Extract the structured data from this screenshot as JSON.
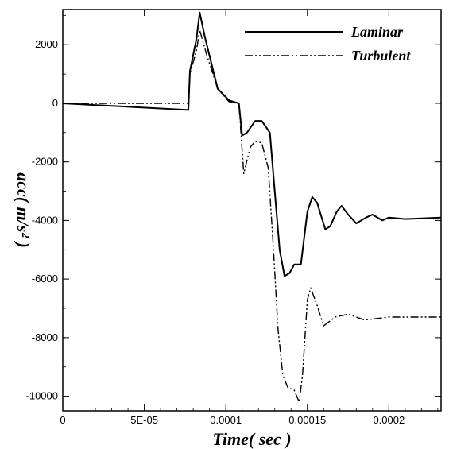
{
  "chart_data": {
    "type": "line",
    "xlabel": "Time( sec )",
    "ylabel": "acc( m/s² )",
    "xlim": [
      0,
      0.0002
    ],
    "ylim": [
      -10500,
      3200
    ],
    "x_ticks": [
      0,
      5e-05,
      0.0001,
      0.00015,
      0.0002
    ],
    "x_tick_labels": [
      "0",
      "5E-05",
      "0.0001",
      "0.00015",
      "0.0002"
    ],
    "y_ticks": [
      -10000,
      -8000,
      -6000,
      -4000,
      -2000,
      0,
      2000
    ],
    "y_tick_labels": [
      "-10000",
      "-8000",
      "-6000",
      "-4000",
      "-2000",
      "0",
      "2000"
    ],
    "grid": false,
    "legend_position": "top-right",
    "series": [
      {
        "name": "Laminar",
        "style": "solid",
        "color": "#000000",
        "points": [
          [
            0,
            0
          ],
          [
            7.7e-05,
            -230
          ],
          [
            7.8e-05,
            1100
          ],
          [
            8.2e-05,
            2200
          ],
          [
            8.4e-05,
            3100
          ],
          [
            8.7e-05,
            2300
          ],
          [
            9.5e-05,
            500
          ],
          [
            0.000102,
            100
          ],
          [
            0.000108,
            0
          ],
          [
            0.00011,
            -1100
          ],
          [
            0.000113,
            -1000
          ],
          [
            0.000118,
            -600
          ],
          [
            0.000122,
            -600
          ],
          [
            0.000127,
            -1000
          ],
          [
            0.00013,
            -3000
          ],
          [
            0.000133,
            -5000
          ],
          [
            0.000136,
            -5900
          ],
          [
            0.000139,
            -5800
          ],
          [
            0.000142,
            -5500
          ],
          [
            0.000146,
            -5500
          ],
          [
            0.00015,
            -3700
          ],
          [
            0.000153,
            -3200
          ],
          [
            0.000156,
            -3400
          ],
          [
            0.000161,
            -4300
          ],
          [
            0.000164,
            -4200
          ],
          [
            0.000168,
            -3700
          ],
          [
            0.000171,
            -3500
          ],
          [
            0.000175,
            -3800
          ],
          [
            0.00018,
            -4100
          ],
          [
            0.000186,
            -3900
          ],
          [
            0.00019,
            -3800
          ],
          [
            0.000196,
            -4000
          ],
          [
            0.0002,
            -3900
          ],
          [
            0.00021,
            -3950
          ],
          [
            0.000232,
            -3900
          ]
        ]
      },
      {
        "name": "Turbulent",
        "style": "dash-dot-dot",
        "color": "#000000",
        "points": [
          [
            0,
            0
          ],
          [
            7.7e-05,
            0
          ],
          [
            7.8e-05,
            1000
          ],
          [
            8.2e-05,
            1800
          ],
          [
            8.4e-05,
            2500
          ],
          [
            8.8e-05,
            1700
          ],
          [
            9.5e-05,
            500
          ],
          [
            0.000102,
            50
          ],
          [
            0.000108,
            0
          ],
          [
            0.000111,
            -2400
          ],
          [
            0.000115,
            -1500
          ],
          [
            0.000118,
            -1300
          ],
          [
            0.000122,
            -1350
          ],
          [
            0.000126,
            -2200
          ],
          [
            0.000129,
            -4800
          ],
          [
            0.000132,
            -7700
          ],
          [
            0.000135,
            -9300
          ],
          [
            0.000138,
            -9700
          ],
          [
            0.000142,
            -9800
          ],
          [
            0.000145,
            -10200
          ],
          [
            0.000147,
            -9300
          ],
          [
            0.00015,
            -6700
          ],
          [
            0.000152,
            -6300
          ],
          [
            0.000156,
            -6900
          ],
          [
            0.00016,
            -7600
          ],
          [
            0.000167,
            -7300
          ],
          [
            0.000175,
            -7200
          ],
          [
            0.000185,
            -7400
          ],
          [
            0.0002,
            -7300
          ],
          [
            0.00021,
            -7300
          ],
          [
            0.000232,
            -7300
          ]
        ]
      }
    ]
  }
}
